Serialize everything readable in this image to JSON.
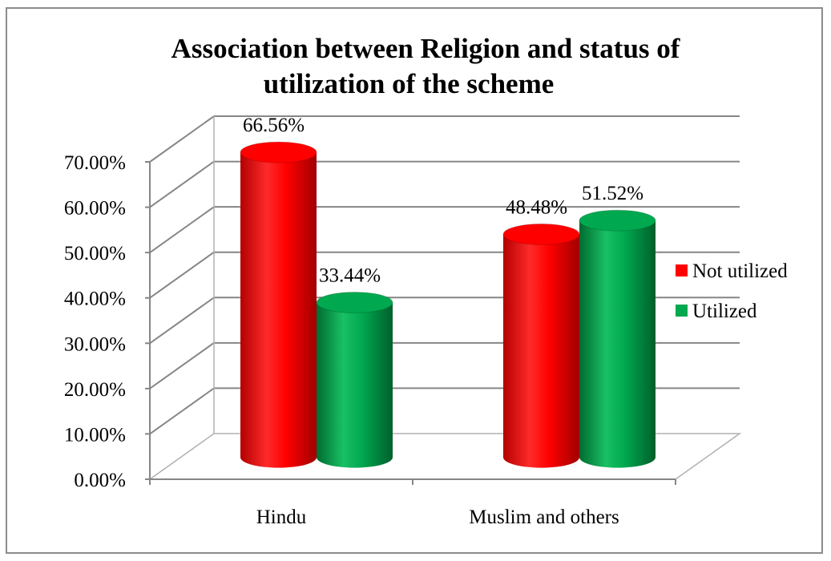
{
  "chart_data": {
    "type": "bar",
    "title_line1": "Association  between Religion and status of",
    "title_line2": "utilization of the scheme",
    "categories": [
      "Hindu",
      "Muslim and others"
    ],
    "series": [
      {
        "name": "Not utilized",
        "values": [
          66.56,
          48.48
        ],
        "labels": [
          "66.56%",
          "48.48%"
        ],
        "color": "#ff0000"
      },
      {
        "name": "Utilized",
        "values": [
          33.44,
          51.52
        ],
        "labels": [
          "33.44%",
          "51.52%"
        ],
        "color": "#00a84f"
      }
    ],
    "yticks": [
      "0.00%",
      "10.00%",
      "20.00%",
      "30.00%",
      "40.00%",
      "50.00%",
      "60.00%",
      "70.00%"
    ],
    "ylim": [
      0,
      70
    ],
    "grid": true,
    "legend_position": "right",
    "style": "3d-cylinder"
  }
}
